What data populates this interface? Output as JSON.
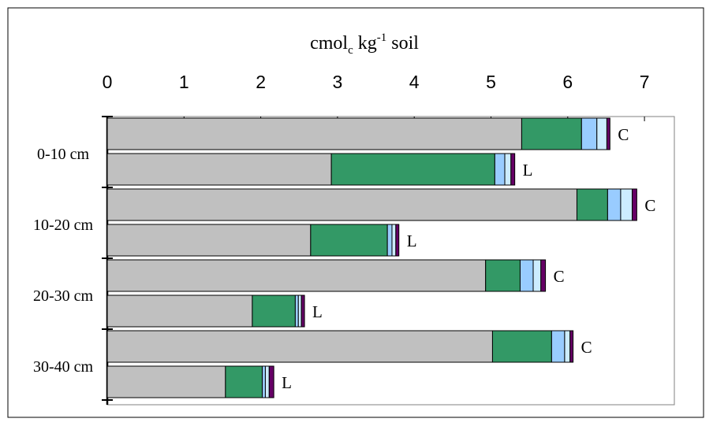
{
  "chart_data": {
    "type": "bar",
    "orientation": "horizontal",
    "stacked": true,
    "x_axis_label": {
      "base": "cmol",
      "subscript": "c",
      "middle": " kg",
      "superscript": "-1",
      "tail": " soil"
    },
    "xlim": [
      0,
      7.5
    ],
    "x_ticks": [
      0,
      1,
      2,
      3,
      4,
      5,
      6,
      7
    ],
    "x_axis_position": "top",
    "grid": false,
    "legend": "none",
    "categories": [
      "0-10 cm",
      "10-20 cm",
      "20-30 cm",
      "30-40 cm"
    ],
    "segment_colors": [
      "#c0c0c0",
      "#339966",
      "#99ccff",
      "#ccecff",
      "#660066"
    ],
    "bars": [
      {
        "category": "0-10 cm",
        "label": "C",
        "segments": [
          5.4,
          0.78,
          0.2,
          0.13,
          0.04
        ]
      },
      {
        "category": "0-10 cm",
        "label": "L",
        "segments": [
          2.92,
          2.13,
          0.13,
          0.08,
          0.05
        ]
      },
      {
        "category": "10-20 cm",
        "label": "C",
        "segments": [
          6.12,
          0.4,
          0.17,
          0.15,
          0.06
        ]
      },
      {
        "category": "10-20 cm",
        "label": "L",
        "segments": [
          2.65,
          1.0,
          0.06,
          0.05,
          0.04
        ]
      },
      {
        "category": "20-30 cm",
        "label": "C",
        "segments": [
          4.93,
          0.45,
          0.17,
          0.1,
          0.06
        ]
      },
      {
        "category": "20-30 cm",
        "label": "L",
        "segments": [
          1.89,
          0.56,
          0.04,
          0.04,
          0.04
        ]
      },
      {
        "category": "30-40 cm",
        "label": "C",
        "segments": [
          5.02,
          0.77,
          0.17,
          0.07,
          0.04
        ]
      },
      {
        "category": "30-40 cm",
        "label": "L",
        "segments": [
          1.54,
          0.48,
          0.04,
          0.05,
          0.06
        ]
      }
    ]
  }
}
